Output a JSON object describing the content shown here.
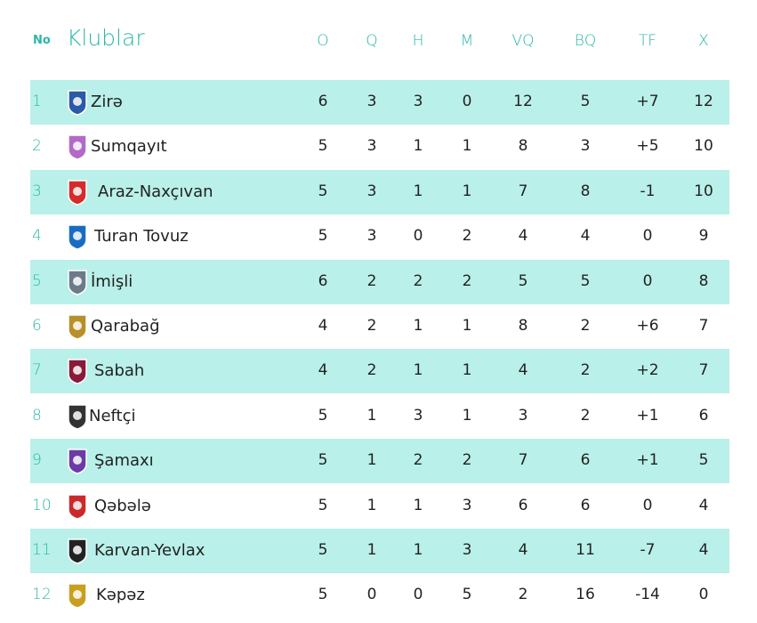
{
  "header": {
    "no": "No",
    "clubs": "Klublar",
    "columns": [
      "O",
      "Q",
      "H",
      "M",
      "VQ",
      "BQ",
      "TF",
      "X"
    ]
  },
  "rows": [
    {
      "rank": "1",
      "club": "Zirə",
      "o": "6",
      "q": "3",
      "h": "3",
      "m": "0",
      "vq": "12",
      "bq": "5",
      "tf": "+7",
      "x": "12",
      "logo": "zire-logo-icon",
      "color": "#2a5aa8"
    },
    {
      "rank": "2",
      "club": "Sumqayıt",
      "o": "5",
      "q": "3",
      "h": "1",
      "m": "1",
      "vq": "8",
      "bq": "3",
      "tf": "+5",
      "x": "10",
      "logo": "sumqayit-logo-icon",
      "color": "#b36ac6"
    },
    {
      "rank": "3",
      "club": "Araz-Naxçıvan",
      "o": "5",
      "q": "3",
      "h": "1",
      "m": "1",
      "vq": "7",
      "bq": "8",
      "tf": "-1",
      "x": "10",
      "logo": "araz-naxcivan-logo-icon",
      "color": "#d62b2b"
    },
    {
      "rank": "4",
      "club": "Turan Tovuz",
      "o": "5",
      "q": "3",
      "h": "0",
      "m": "2",
      "vq": "4",
      "bq": "4",
      "tf": "0",
      "x": "9",
      "logo": "turan-tovuz-logo-icon",
      "color": "#1a6bc4"
    },
    {
      "rank": "5",
      "club": "İmişli",
      "o": "6",
      "q": "2",
      "h": "2",
      "m": "2",
      "vq": "5",
      "bq": "5",
      "tf": "0",
      "x": "8",
      "logo": "imishli-logo-icon",
      "color": "#6c7a8a"
    },
    {
      "rank": "6",
      "club": "Qarabağ",
      "o": "4",
      "q": "2",
      "h": "1",
      "m": "1",
      "vq": "8",
      "bq": "2",
      "tf": "+6",
      "x": "7",
      "logo": "qarabag-logo-icon",
      "color": "#b8902a"
    },
    {
      "rank": "7",
      "club": "Sabah",
      "o": "4",
      "q": "2",
      "h": "1",
      "m": "1",
      "vq": "4",
      "bq": "2",
      "tf": "+2",
      "x": "7",
      "logo": "sabah-logo-icon",
      "color": "#8a1a3a"
    },
    {
      "rank": "8",
      "club": "Neftçi",
      "o": "5",
      "q": "1",
      "h": "3",
      "m": "1",
      "vq": "3",
      "bq": "2",
      "tf": "+1",
      "x": "6",
      "logo": "neftci-logo-icon",
      "color": "#333333"
    },
    {
      "rank": "9",
      "club": "Şamaxı",
      "o": "5",
      "q": "1",
      "h": "2",
      "m": "2",
      "vq": "7",
      "bq": "6",
      "tf": "+1",
      "x": "5",
      "logo": "shamaxi-logo-icon",
      "color": "#6a3aa8"
    },
    {
      "rank": "10",
      "club": "Qəbələ",
      "o": "5",
      "q": "1",
      "h": "1",
      "m": "3",
      "vq": "6",
      "bq": "6",
      "tf": "0",
      "x": "4",
      "logo": "qabala-logo-icon",
      "color": "#cc2a2a"
    },
    {
      "rank": "11",
      "club": "Karvan-Yevlax",
      "o": "5",
      "q": "1",
      "h": "1",
      "m": "3",
      "vq": "4",
      "bq": "11",
      "tf": "-7",
      "x": "4",
      "logo": "karvan-yevlax-logo-icon",
      "color": "#222222"
    },
    {
      "rank": "12",
      "club": "Kəpəz",
      "o": "5",
      "q": "0",
      "h": "0",
      "m": "5",
      "vq": "2",
      "bq": "16",
      "tf": "-14",
      "x": "0",
      "logo": "kapaz-logo-icon",
      "color": "#c8a020"
    }
  ],
  "colors": {
    "accent": "#2bb7a6",
    "row_alt": "#b9f0e9"
  }
}
